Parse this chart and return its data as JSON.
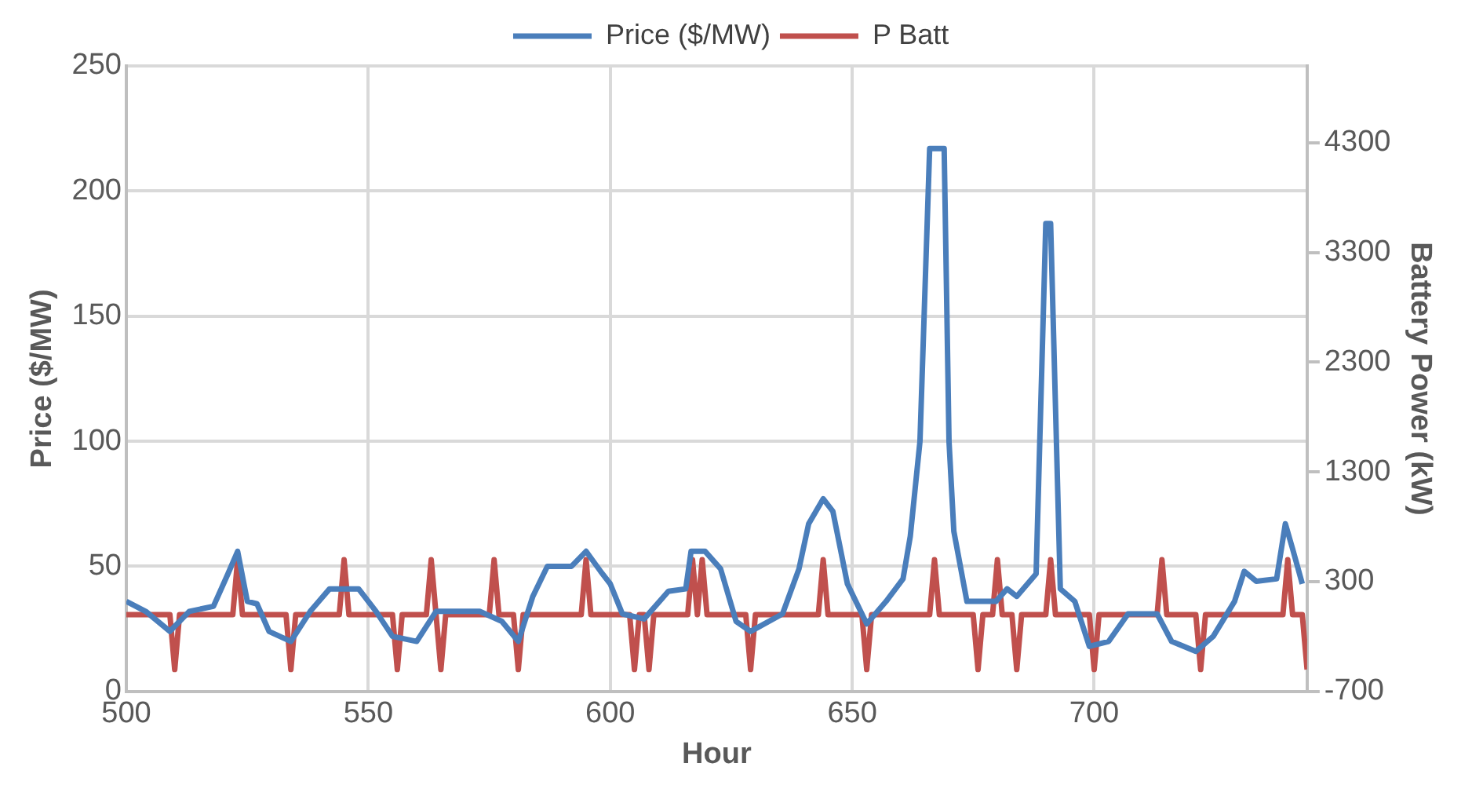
{
  "chart_data": {
    "type": "line",
    "xlabel": "Hour",
    "ylabel": "Price ($/MW)",
    "y2label": "Battery Power (kW)",
    "xlim": [
      500,
      744
    ],
    "xticks": [
      500,
      550,
      600,
      650,
      700
    ],
    "ylim": [
      0,
      250
    ],
    "yticks": [
      0,
      50,
      100,
      150,
      200,
      250
    ],
    "y2lim": [
      -700,
      5000
    ],
    "y2ticks": [
      -700,
      300,
      1300,
      2300,
      3300,
      4300
    ],
    "grid": true,
    "legend": "top",
    "marker": "none",
    "line_style": "solid",
    "series": [
      {
        "name": "Price ($/MW)",
        "color": "#4a7ebb",
        "x": [
          500,
          504,
          509,
          513,
          518,
          521,
          523,
          525,
          527,
          529.5,
          534,
          538,
          542,
          548,
          551.6,
          555,
          560,
          564,
          573,
          577.6,
          581,
          584,
          587,
          592,
          595,
          598,
          600,
          602.5,
          607,
          612,
          615.6,
          616.7,
          619.6,
          622.8,
          626,
          629,
          635.6,
          639,
          641,
          644,
          646,
          649,
          653,
          657,
          660.5,
          662,
          664,
          666,
          669,
          670,
          671,
          673.7,
          679.7,
          682,
          684,
          688,
          690,
          691,
          693,
          696,
          699,
          703,
          707,
          713,
          716,
          721,
          724.6,
          729,
          731,
          733.5,
          737.7,
          739.5,
          741,
          743
        ],
        "values": [
          36,
          32,
          24,
          32,
          34,
          47,
          56,
          36,
          35,
          24,
          20,
          32,
          41,
          41,
          32,
          22,
          20,
          32,
          32,
          28,
          20,
          38,
          50,
          50,
          56,
          48,
          43,
          31,
          29,
          40,
          41,
          56,
          56,
          49,
          28,
          24,
          31,
          49,
          67,
          77,
          72,
          43,
          27,
          36,
          45,
          62,
          100,
          217,
          217,
          100,
          64,
          36,
          36,
          41,
          38,
          47,
          187,
          187,
          41,
          36,
          18,
          20,
          31,
          31,
          20,
          16,
          22,
          36,
          48,
          44,
          45,
          67,
          57,
          43
        ]
      },
      {
        "name": "P Batt",
        "color": "#c0504d",
        "axis": "y2",
        "x": [
          500,
          509,
          510,
          511,
          522,
          523,
          524,
          533,
          534,
          535,
          544,
          545,
          546,
          555,
          556,
          557,
          562,
          563,
          564,
          565,
          566,
          575,
          576,
          577,
          580,
          581,
          582,
          594,
          595,
          596,
          604,
          605,
          606,
          607,
          608,
          609,
          616,
          617,
          618,
          619,
          620,
          628,
          629,
          630,
          643,
          644,
          645,
          652,
          653,
          654,
          666,
          667,
          668,
          675,
          676,
          677,
          679,
          680,
          681,
          683,
          684,
          685,
          690,
          691,
          692,
          699,
          700,
          701,
          713,
          714,
          715,
          721,
          722,
          723,
          739,
          740,
          741,
          743,
          744
        ],
        "values": [
          0,
          0,
          -500,
          0,
          0,
          500,
          0,
          0,
          -500,
          0,
          0,
          500,
          0,
          0,
          -500,
          0,
          0,
          500,
          0,
          -500,
          0,
          0,
          500,
          0,
          0,
          -500,
          0,
          0,
          500,
          0,
          0,
          -500,
          0,
          0,
          -500,
          0,
          0,
          500,
          0,
          500,
          0,
          0,
          -500,
          0,
          0,
          500,
          0,
          0,
          -500,
          0,
          0,
          500,
          0,
          0,
          -500,
          0,
          0,
          500,
          0,
          0,
          -500,
          0,
          0,
          500,
          0,
          0,
          -500,
          0,
          0,
          500,
          0,
          0,
          -500,
          0,
          0,
          500,
          0,
          0,
          -500
        ]
      }
    ]
  }
}
